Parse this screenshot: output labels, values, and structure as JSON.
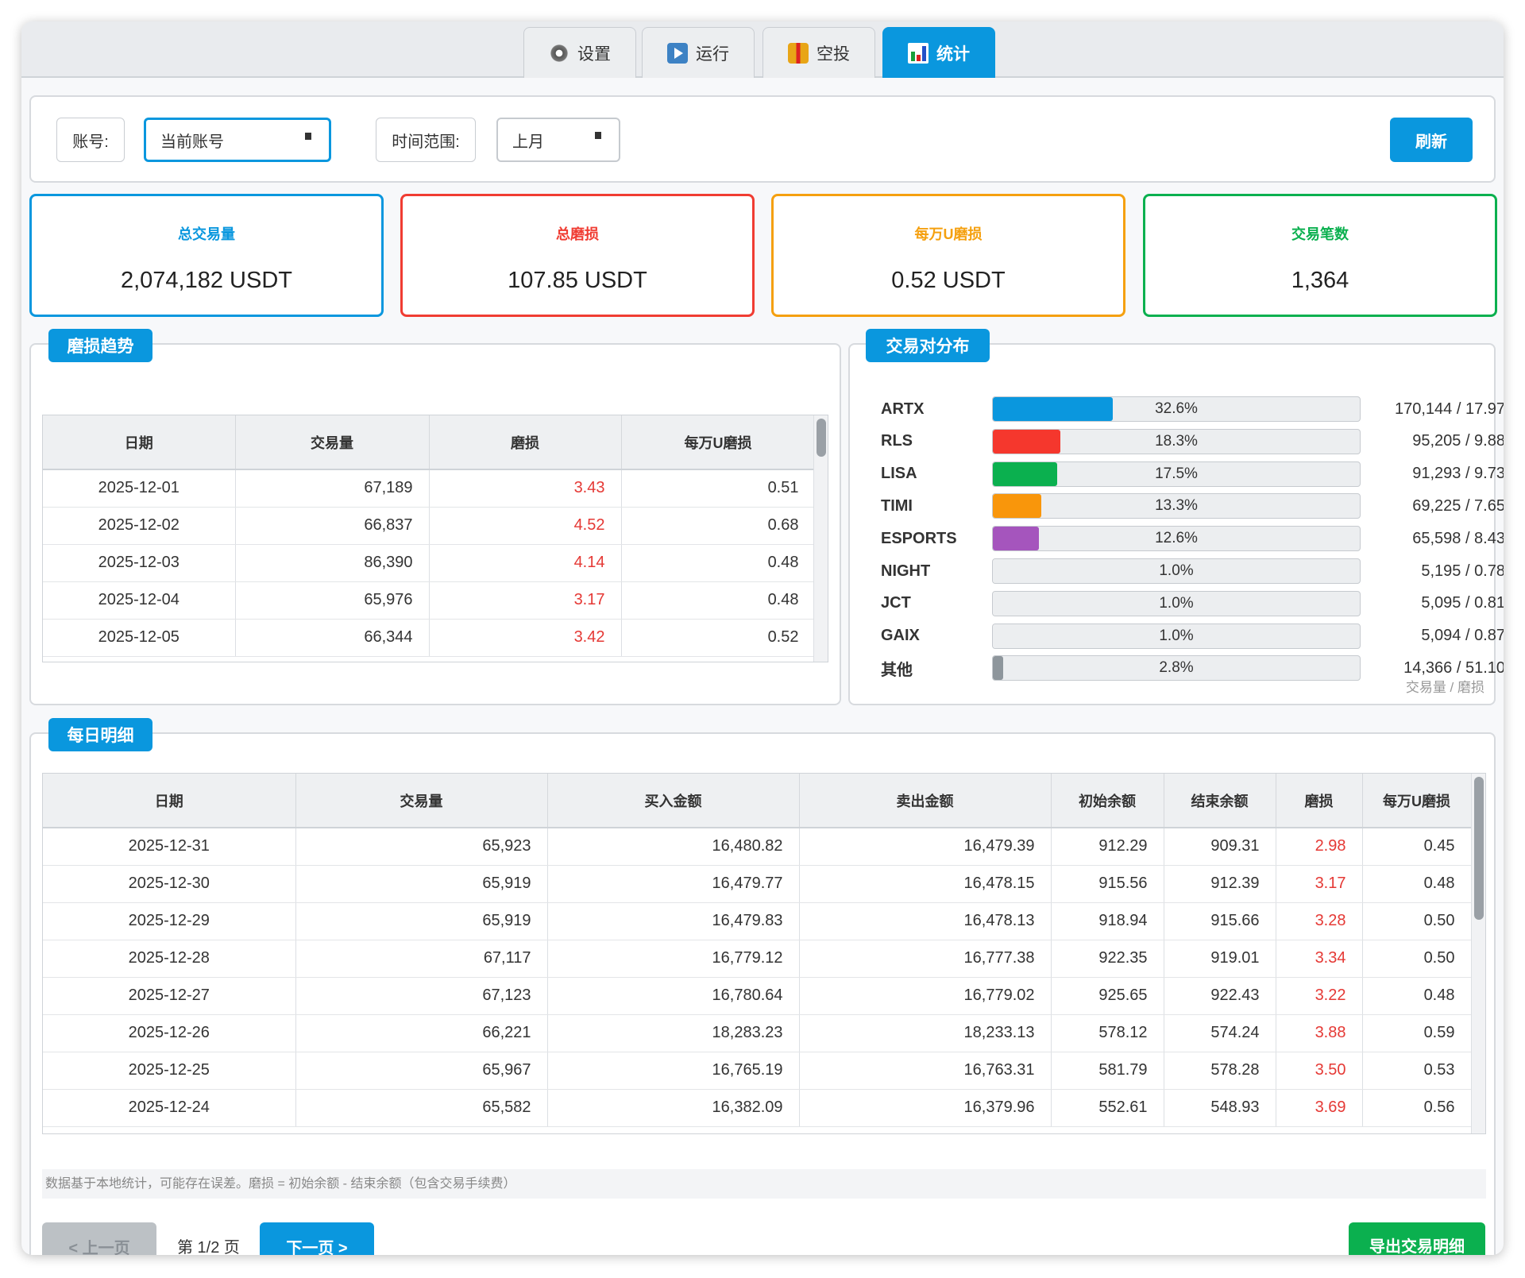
{
  "tabs": [
    {
      "label": "设置",
      "icon": "gear-icon"
    },
    {
      "label": "运行",
      "icon": "play-icon"
    },
    {
      "label": "空投",
      "icon": "gift-icon"
    },
    {
      "label": "统计",
      "icon": "bar-chart-icon",
      "active": true
    }
  ],
  "filters": {
    "account_label": "账号:",
    "account_value": "当前账号",
    "range_label": "时间范围:",
    "range_value": "上月",
    "refresh": "刷新"
  },
  "cards": [
    {
      "title": "总交易量",
      "value": "2,074,182 USDT",
      "color": "#0a97de"
    },
    {
      "title": "总磨损",
      "value": "107.85 USDT",
      "color": "#f03c32"
    },
    {
      "title": "每万U磨损",
      "value": "0.52 USDT",
      "color": "#f5a00f"
    },
    {
      "title": "交易笔数",
      "value": "1,364",
      "color": "#0bb04f"
    }
  ],
  "trend": {
    "title": "磨损趋势",
    "headers": [
      "日期",
      "交易量",
      "磨损",
      "每万U磨损"
    ],
    "rows": [
      [
        "2025-12-01",
        "67,189",
        "3.43",
        "0.51"
      ],
      [
        "2025-12-02",
        "66,837",
        "4.52",
        "0.68"
      ],
      [
        "2025-12-03",
        "86,390",
        "4.14",
        "0.48"
      ],
      [
        "2025-12-04",
        "65,976",
        "3.17",
        "0.48"
      ],
      [
        "2025-12-05",
        "66,344",
        "3.42",
        "0.52"
      ]
    ]
  },
  "distribution": {
    "title": "交易对分布",
    "footer": "交易量 / 磨损",
    "items": [
      {
        "name": "ARTX",
        "pct": 32.6,
        "label": "32.6%",
        "value": "170,144 / 17.97",
        "color": "#0a97de"
      },
      {
        "name": "RLS",
        "pct": 18.3,
        "label": "18.3%",
        "value": "95,205 / 9.88",
        "color": "#f5372d"
      },
      {
        "name": "LISA",
        "pct": 17.5,
        "label": "17.5%",
        "value": "91,293 / 9.73",
        "color": "#0bb04f"
      },
      {
        "name": "TIMI",
        "pct": 13.3,
        "label": "13.3%",
        "value": "69,225 / 7.65",
        "color": "#f9960b"
      },
      {
        "name": "ESPORTS",
        "pct": 12.6,
        "label": "12.6%",
        "value": "65,598 / 8.43",
        "color": "#a555bd"
      },
      {
        "name": "NIGHT",
        "pct": 1.0,
        "label": "1.0%",
        "value": "5,195 / 0.78",
        "color": "#eceef0"
      },
      {
        "name": "JCT",
        "pct": 1.0,
        "label": "1.0%",
        "value": "5,095 / 0.81",
        "color": "#eceef0"
      },
      {
        "name": "GAIX",
        "pct": 1.0,
        "label": "1.0%",
        "value": "5,094 / 0.87",
        "color": "#eceef0"
      },
      {
        "name": "其他",
        "pct": 2.8,
        "label": "2.8%",
        "value": "14,366 / 51.10",
        "color": "#8e969c"
      }
    ]
  },
  "daily": {
    "title": "每日明细",
    "headers": [
      "日期",
      "交易量",
      "买入金额",
      "卖出金额",
      "初始余额",
      "结束余额",
      "磨损",
      "每万U磨损"
    ],
    "rows": [
      [
        "2025-12-31",
        "65,923",
        "16,480.82",
        "16,479.39",
        "912.29",
        "909.31",
        "2.98",
        "0.45"
      ],
      [
        "2025-12-30",
        "65,919",
        "16,479.77",
        "16,478.15",
        "915.56",
        "912.39",
        "3.17",
        "0.48"
      ],
      [
        "2025-12-29",
        "65,919",
        "16,479.83",
        "16,478.13",
        "918.94",
        "915.66",
        "3.28",
        "0.50"
      ],
      [
        "2025-12-28",
        "67,117",
        "16,779.12",
        "16,777.38",
        "922.35",
        "919.01",
        "3.34",
        "0.50"
      ],
      [
        "2025-12-27",
        "67,123",
        "16,780.64",
        "16,779.02",
        "925.65",
        "922.43",
        "3.22",
        "0.48"
      ],
      [
        "2025-12-26",
        "66,221",
        "18,283.23",
        "18,233.13",
        "578.12",
        "574.24",
        "3.88",
        "0.59"
      ],
      [
        "2025-12-25",
        "65,967",
        "16,765.19",
        "16,763.31",
        "581.79",
        "578.28",
        "3.50",
        "0.53"
      ],
      [
        "2025-12-24",
        "65,582",
        "16,382.09",
        "16,379.96",
        "552.61",
        "548.93",
        "3.69",
        "0.56"
      ]
    ],
    "note": "数据基于本地统计，可能存在误差。磨损 = 初始余额 - 结束余额（包含交易手续费）",
    "prev": "< 上一页",
    "page": "第 1/2 页",
    "next": "下一页 >",
    "export": "导出交易明细"
  }
}
